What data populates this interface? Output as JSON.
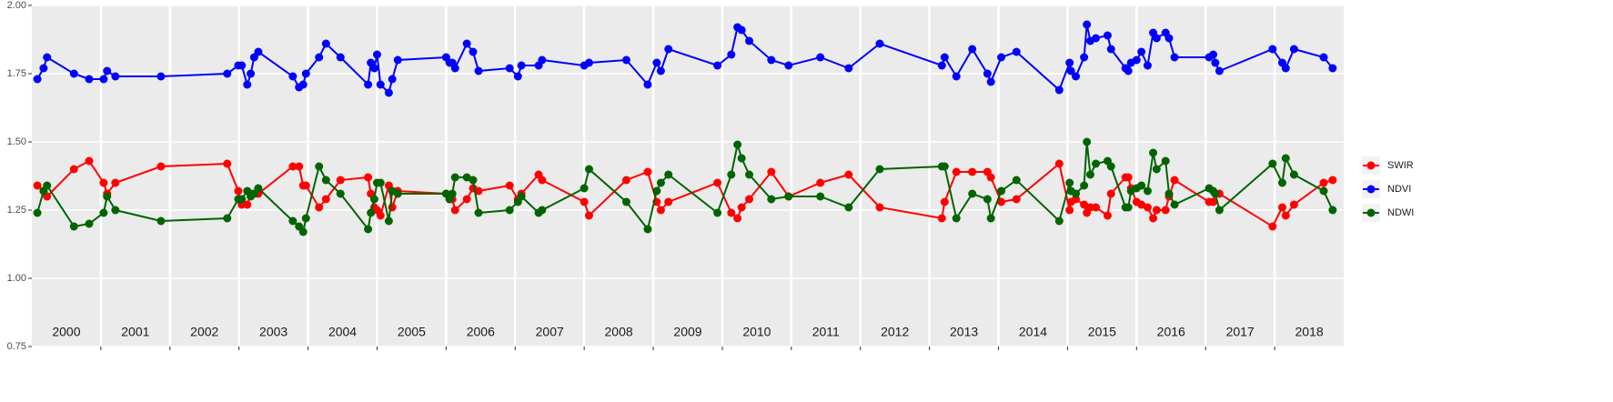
{
  "chart_data": {
    "type": "line",
    "x": [
      2000.08,
      2000.17,
      2000.22,
      2000.61,
      2000.83,
      2001.04,
      2001.09,
      2001.21,
      2001.87,
      2002.83,
      2002.99,
      2003.04,
      2003.12,
      2003.17,
      2003.22,
      2003.28,
      2003.78,
      2003.87,
      2003.93,
      2003.97,
      2004.16,
      2004.26,
      2004.47,
      2004.87,
      2004.91,
      2004.96,
      2005.0,
      2005.05,
      2005.17,
      2005.22,
      2005.3,
      2006.0,
      2006.05,
      2006.09,
      2006.13,
      2006.3,
      2006.39,
      2006.47,
      2006.92,
      2007.04,
      2007.09,
      2007.34,
      2007.39,
      2008.0,
      2008.07,
      2008.61,
      2008.92,
      2009.05,
      2009.11,
      2009.22,
      2009.93,
      2010.13,
      2010.22,
      2010.28,
      2010.39,
      2010.71,
      2010.96,
      2011.42,
      2011.83,
      2012.28,
      2013.18,
      2013.22,
      2013.39,
      2013.62,
      2013.84,
      2013.89,
      2014.04,
      2014.26,
      2014.88,
      2015.03,
      2015.05,
      2015.12,
      2015.24,
      2015.28,
      2015.33,
      2015.41,
      2015.58,
      2015.63,
      2015.84,
      2015.88,
      2015.92,
      2016.0,
      2016.07,
      2016.16,
      2016.24,
      2016.29,
      2016.42,
      2016.47,
      2016.55,
      2017.05,
      2017.11,
      2017.14,
      2017.2,
      2017.97,
      2018.11,
      2018.16,
      2018.28,
      2018.71,
      2018.84
    ],
    "series": [
      {
        "name": "SWIR",
        "color": "#ff0000",
        "values": [
          1.34,
          1.32,
          1.3,
          1.4,
          1.43,
          1.35,
          1.31,
          1.35,
          1.41,
          1.42,
          1.32,
          1.27,
          1.27,
          1.31,
          1.31,
          1.31,
          1.41,
          1.41,
          1.34,
          1.34,
          1.26,
          1.29,
          1.36,
          1.37,
          1.31,
          1.26,
          1.25,
          1.23,
          1.34,
          1.26,
          1.32,
          1.31,
          1.29,
          1.29,
          1.25,
          1.29,
          1.33,
          1.32,
          1.34,
          1.29,
          1.31,
          1.38,
          1.36,
          1.28,
          1.23,
          1.36,
          1.39,
          1.28,
          1.25,
          1.28,
          1.35,
          1.24,
          1.22,
          1.26,
          1.29,
          1.39,
          1.3,
          1.35,
          1.38,
          1.26,
          1.22,
          1.28,
          1.39,
          1.39,
          1.39,
          1.37,
          1.28,
          1.29,
          1.42,
          1.25,
          1.28,
          1.29,
          1.27,
          1.24,
          1.26,
          1.26,
          1.23,
          1.31,
          1.37,
          1.37,
          1.33,
          1.28,
          1.27,
          1.26,
          1.22,
          1.25,
          1.25,
          1.3,
          1.36,
          1.28,
          1.28,
          1.31,
          1.31,
          1.19,
          1.26,
          1.23,
          1.27,
          1.35,
          1.36
        ]
      },
      {
        "name": "NDVI",
        "color": "#0000ff",
        "values": [
          1.73,
          1.77,
          1.81,
          1.75,
          1.73,
          1.73,
          1.76,
          1.74,
          1.74,
          1.75,
          1.78,
          1.78,
          1.71,
          1.75,
          1.81,
          1.83,
          1.74,
          1.7,
          1.71,
          1.75,
          1.81,
          1.86,
          1.81,
          1.71,
          1.79,
          1.77,
          1.82,
          1.71,
          1.68,
          1.73,
          1.8,
          1.81,
          1.79,
          1.79,
          1.77,
          1.86,
          1.83,
          1.76,
          1.77,
          1.74,
          1.78,
          1.78,
          1.8,
          1.78,
          1.79,
          1.8,
          1.71,
          1.79,
          1.76,
          1.84,
          1.78,
          1.82,
          1.92,
          1.91,
          1.87,
          1.8,
          1.78,
          1.81,
          1.77,
          1.86,
          1.78,
          1.81,
          1.74,
          1.84,
          1.75,
          1.72,
          1.81,
          1.83,
          1.69,
          1.79,
          1.76,
          1.74,
          1.81,
          1.93,
          1.87,
          1.88,
          1.89,
          1.84,
          1.77,
          1.76,
          1.79,
          1.8,
          1.83,
          1.78,
          1.9,
          1.88,
          1.9,
          1.88,
          1.81,
          1.81,
          1.82,
          1.79,
          1.76,
          1.84,
          1.79,
          1.77,
          1.84,
          1.81,
          1.77
        ]
      },
      {
        "name": "NDWI",
        "color": "#006400",
        "values": [
          1.24,
          1.32,
          1.34,
          1.19,
          1.2,
          1.24,
          1.3,
          1.25,
          1.21,
          1.22,
          1.29,
          1.29,
          1.32,
          1.3,
          1.31,
          1.33,
          1.21,
          1.19,
          1.17,
          1.22,
          1.41,
          1.36,
          1.31,
          1.18,
          1.24,
          1.29,
          1.35,
          1.35,
          1.21,
          1.32,
          1.31,
          1.31,
          1.29,
          1.31,
          1.37,
          1.37,
          1.36,
          1.24,
          1.25,
          1.28,
          1.3,
          1.24,
          1.25,
          1.33,
          1.4,
          1.28,
          1.18,
          1.32,
          1.35,
          1.38,
          1.24,
          1.38,
          1.49,
          1.44,
          1.38,
          1.29,
          1.3,
          1.3,
          1.26,
          1.4,
          1.41,
          1.41,
          1.22,
          1.31,
          1.29,
          1.22,
          1.32,
          1.36,
          1.21,
          1.35,
          1.32,
          1.31,
          1.34,
          1.5,
          1.38,
          1.42,
          1.43,
          1.41,
          1.26,
          1.26,
          1.32,
          1.33,
          1.34,
          1.32,
          1.46,
          1.4,
          1.43,
          1.31,
          1.27,
          1.33,
          1.32,
          1.31,
          1.25,
          1.42,
          1.35,
          1.44,
          1.38,
          1.32,
          1.25
        ]
      }
    ],
    "xlim": [
      2000,
      2019
    ],
    "xgrid": [
      2001,
      2002,
      2003,
      2004,
      2005,
      2006,
      2007,
      2008,
      2009,
      2010,
      2011,
      2012,
      2013,
      2014,
      2015,
      2016,
      2017,
      2018
    ],
    "ylim": [
      0.75,
      2.0
    ],
    "yticks": [
      0.75,
      {
        "value": 1.0,
        "label": "1.00"
      },
      1.25,
      {
        "value": 1.5,
        "label": "1.50"
      },
      1.75,
      {
        "value": 2.0,
        "label": "2.00"
      }
    ],
    "grid": true,
    "legend": "right",
    "annotations": [
      {
        "text": "2000",
        "x": 2000.5
      },
      {
        "text": "2001",
        "x": 2001.5
      },
      {
        "text": "2002",
        "x": 2002.5
      },
      {
        "text": "2003",
        "x": 2003.5
      },
      {
        "text": "2004",
        "x": 2004.5
      },
      {
        "text": "2005",
        "x": 2005.5
      },
      {
        "text": "2006",
        "x": 2006.5
      },
      {
        "text": "2007",
        "x": 2007.5
      },
      {
        "text": "2008",
        "x": 2008.5
      },
      {
        "text": "2009",
        "x": 2009.5
      },
      {
        "text": "2010",
        "x": 2010.5
      },
      {
        "text": "2011",
        "x": 2011.5
      },
      {
        "text": "2012",
        "x": 2012.5
      },
      {
        "text": "2013",
        "x": 2013.5
      },
      {
        "text": "2014",
        "x": 2014.5
      },
      {
        "text": "2015",
        "x": 2015.5
      },
      {
        "text": "2016",
        "x": 2016.5
      },
      {
        "text": "2017",
        "x": 2017.5
      },
      {
        "text": "2018",
        "x": 2018.5
      }
    ]
  }
}
